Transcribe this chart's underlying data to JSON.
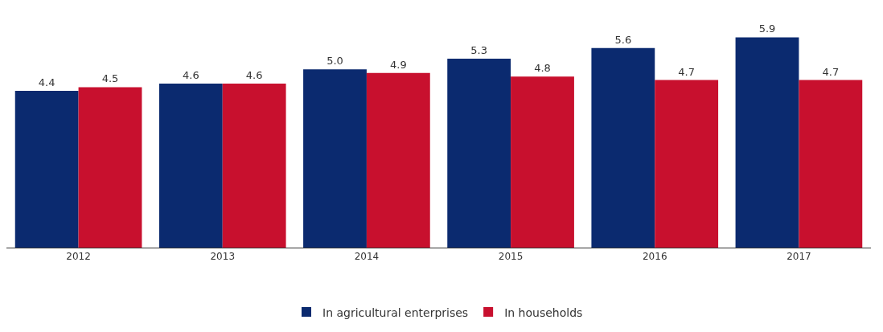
{
  "chart_data": {
    "type": "bar",
    "categories": [
      "2012",
      "2013",
      "2014",
      "2015",
      "2016",
      "2017"
    ],
    "series": [
      {
        "name": "In agricultural enterprises",
        "color": "#0b2a6f",
        "values": [
          4.4,
          4.6,
          5.0,
          5.3,
          5.6,
          5.9
        ],
        "value_labels": [
          "4.4",
          "4.6",
          "5.0",
          "5.3",
          "5.6",
          "5.9"
        ]
      },
      {
        "name": "In households",
        "color": "#c8102e",
        "values": [
          4.5,
          4.6,
          4.9,
          4.8,
          4.7,
          4.7
        ],
        "value_labels": [
          "4.5",
          "4.6",
          "4.9",
          "4.8",
          "4.7",
          "4.7"
        ]
      }
    ],
    "legend": "bottom"
  }
}
